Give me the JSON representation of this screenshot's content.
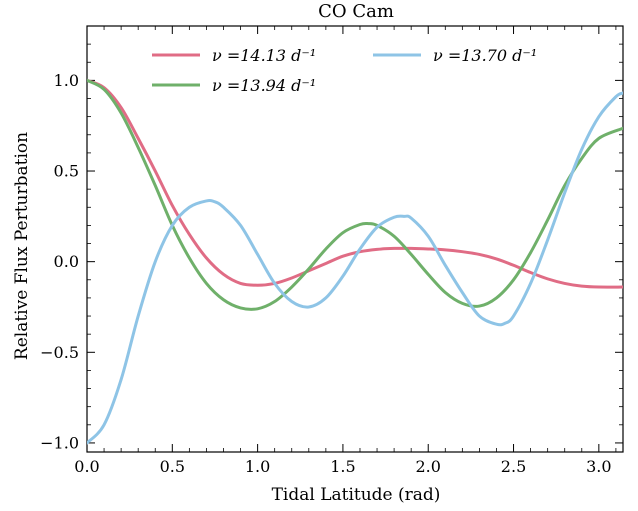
{
  "chart_data": {
    "type": "line",
    "title": "CO Cam",
    "xlabel": "Tidal Latitude (rad)",
    "ylabel": "Relative Flux Perturbation",
    "xlim": [
      0,
      3.1416
    ],
    "ylim": [
      -1.05,
      1.3
    ],
    "x_ticks": [
      0.0,
      0.5,
      1.0,
      1.5,
      2.0,
      2.5,
      3.0
    ],
    "x_tick_labels": [
      "0.0",
      "0.5",
      "1.0",
      "1.5",
      "2.0",
      "2.5",
      "3.0"
    ],
    "y_ticks": [
      -1.0,
      -0.5,
      0.0,
      0.5,
      1.0
    ],
    "y_tick_labels": [
      "−1.0",
      "−0.5",
      "0.0",
      "0.5",
      "1.0"
    ],
    "grid": false,
    "legend_position": "top",
    "series": [
      {
        "name": "ν =14.13 d⁻¹",
        "color": "#e06c85",
        "x": [
          0.0,
          0.1,
          0.2,
          0.3,
          0.4,
          0.5,
          0.6,
          0.7,
          0.8,
          0.9,
          1.0,
          1.1,
          1.2,
          1.3,
          1.4,
          1.5,
          1.6,
          1.7,
          1.8,
          1.9,
          2.0,
          2.1,
          2.2,
          2.3,
          2.4,
          2.5,
          2.6,
          2.7,
          2.8,
          2.9,
          3.0,
          3.14
        ],
        "y": [
          1.0,
          0.96,
          0.85,
          0.68,
          0.5,
          0.31,
          0.15,
          0.02,
          -0.07,
          -0.12,
          -0.13,
          -0.12,
          -0.09,
          -0.05,
          -0.01,
          0.03,
          0.055,
          0.068,
          0.073,
          0.073,
          0.07,
          0.065,
          0.055,
          0.04,
          0.015,
          -0.02,
          -0.06,
          -0.095,
          -0.12,
          -0.135,
          -0.14,
          -0.14
        ]
      },
      {
        "name": "ν =13.94 d⁻¹",
        "color": "#6fb06a",
        "x": [
          0.0,
          0.1,
          0.2,
          0.3,
          0.4,
          0.5,
          0.6,
          0.7,
          0.8,
          0.9,
          1.0,
          1.1,
          1.2,
          1.3,
          1.4,
          1.5,
          1.6,
          1.65,
          1.7,
          1.8,
          1.9,
          2.0,
          2.1,
          2.2,
          2.3,
          2.4,
          2.5,
          2.6,
          2.7,
          2.8,
          2.9,
          3.0,
          3.14
        ],
        "y": [
          1.0,
          0.95,
          0.82,
          0.63,
          0.42,
          0.2,
          0.02,
          -0.12,
          -0.21,
          -0.255,
          -0.26,
          -0.22,
          -0.14,
          -0.04,
          0.07,
          0.16,
          0.205,
          0.21,
          0.2,
          0.14,
          0.04,
          -0.07,
          -0.17,
          -0.23,
          -0.245,
          -0.2,
          -0.1,
          0.05,
          0.23,
          0.42,
          0.57,
          0.68,
          0.735
        ]
      },
      {
        "name": "ν =13.70 d⁻¹",
        "color": "#8ec4e6",
        "x": [
          0.0,
          0.1,
          0.2,
          0.3,
          0.4,
          0.5,
          0.6,
          0.7,
          0.75,
          0.8,
          0.9,
          1.0,
          1.1,
          1.2,
          1.3,
          1.4,
          1.5,
          1.6,
          1.7,
          1.8,
          1.86,
          1.9,
          2.0,
          2.1,
          2.2,
          2.3,
          2.4,
          2.45,
          2.5,
          2.6,
          2.7,
          2.8,
          2.9,
          3.0,
          3.1,
          3.14
        ],
        "y": [
          -1.0,
          -0.9,
          -0.65,
          -0.3,
          0.0,
          0.2,
          0.3,
          0.335,
          0.33,
          0.3,
          0.2,
          0.04,
          -0.12,
          -0.22,
          -0.25,
          -0.2,
          -0.08,
          0.07,
          0.19,
          0.245,
          0.25,
          0.24,
          0.14,
          -0.02,
          -0.17,
          -0.3,
          -0.345,
          -0.34,
          -0.3,
          -0.12,
          0.12,
          0.38,
          0.62,
          0.8,
          0.91,
          0.93
        ]
      }
    ]
  }
}
